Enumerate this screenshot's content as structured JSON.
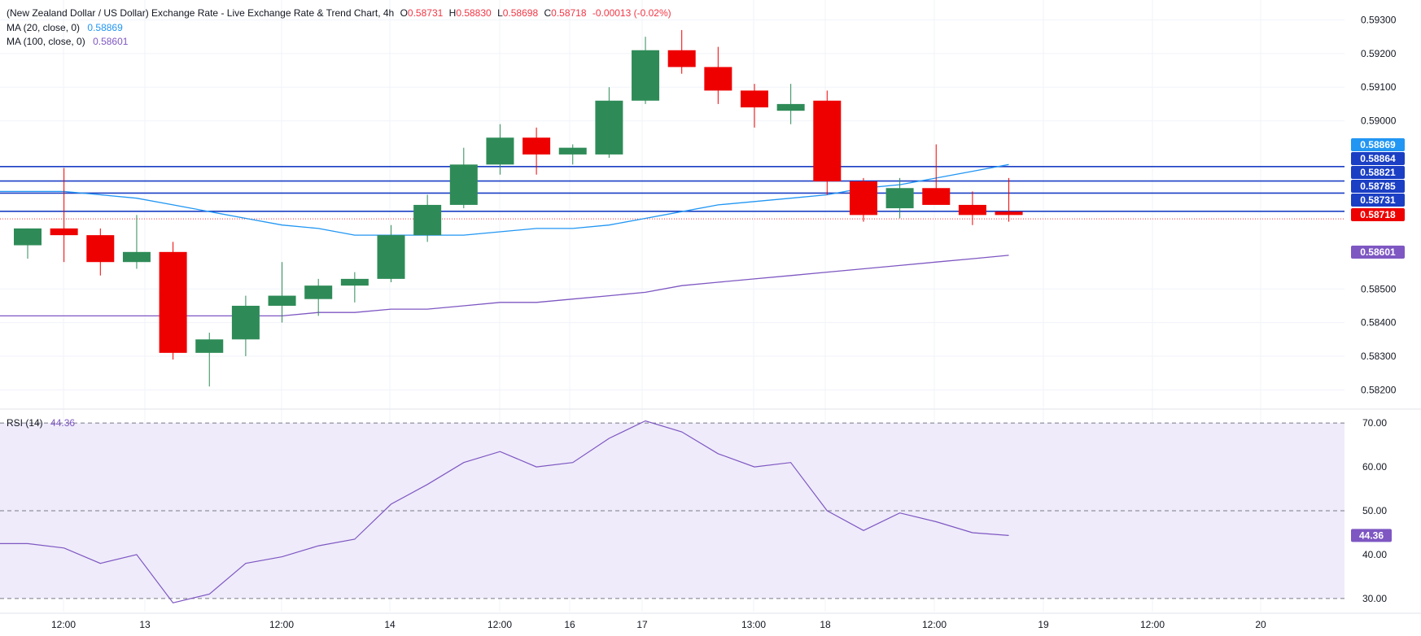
{
  "header": {
    "title": "(New Zealand Dollar / US Dollar) Exchange Rate - Live Exchange Rate & Trend Chart, 4h",
    "o_label": "O",
    "o_value": "0.58731",
    "h_label": "H",
    "h_value": "0.58830",
    "l_label": "L",
    "l_value": "0.58698",
    "c_label": "C",
    "c_value": "0.58718",
    "change": "-0.00013 (-0.02%)",
    "ma20_label": "MA (20, close, 0)",
    "ma20_value": "0.58869",
    "ma100_label": "MA (100, close, 0)",
    "ma100_value": "0.58601",
    "rsi_label": "RSI (14)",
    "rsi_value": "44.36"
  },
  "colors": {
    "up": "#2e8b57",
    "down": "#ee0000",
    "ma20": "#2196f3",
    "ma100": "#7e57c2",
    "sr_line": "#1a3fc4",
    "rsi_line": "#7e57c2",
    "rsi_band": "#efebfa"
  },
  "chart_data": [
    {
      "type": "candlestick",
      "ylim": [
        0.5815,
        0.5934
      ],
      "y_ticks": [
        "0.59300",
        "0.59200",
        "0.59100",
        "0.59000",
        "0.58500",
        "0.58400",
        "0.58300",
        "0.58200"
      ],
      "x_ticks": [
        "12:00",
        "13",
        "12:00",
        "14",
        "12:00",
        "16",
        "17",
        "13:00",
        "18",
        "12:00",
        "19",
        "12:00",
        "20"
      ],
      "price_labels": [
        {
          "text": "0.58869",
          "role": "ma20",
          "value": 0.58869
        },
        {
          "text": "0.58864",
          "role": "level",
          "value": 0.58864
        },
        {
          "text": "0.58821",
          "role": "level",
          "value": 0.58821
        },
        {
          "text": "0.58785",
          "role": "level",
          "value": 0.58785
        },
        {
          "text": "0.58731",
          "role": "level",
          "value": 0.58731
        },
        {
          "text": "0.58718",
          "role": "last",
          "value": 0.58718
        },
        {
          "text": "0.58601",
          "role": "ma100",
          "value": 0.58601
        }
      ],
      "levels": [
        0.58864,
        0.58821,
        0.58785,
        0.58731
      ],
      "last_price": 0.58718,
      "candles": [
        {
          "o": 0.5863,
          "h": 0.5868,
          "l": 0.5859,
          "c": 0.5868
        },
        {
          "o": 0.5868,
          "h": 0.5886,
          "l": 0.5858,
          "c": 0.5866
        },
        {
          "o": 0.5866,
          "h": 0.5868,
          "l": 0.5854,
          "c": 0.5858
        },
        {
          "o": 0.5858,
          "h": 0.5872,
          "l": 0.5856,
          "c": 0.5861
        },
        {
          "o": 0.5861,
          "h": 0.5864,
          "l": 0.5829,
          "c": 0.5831
        },
        {
          "o": 0.5831,
          "h": 0.5837,
          "l": 0.5821,
          "c": 0.5835
        },
        {
          "o": 0.5835,
          "h": 0.5848,
          "l": 0.583,
          "c": 0.5845
        },
        {
          "o": 0.5845,
          "h": 0.5858,
          "l": 0.584,
          "c": 0.5848
        },
        {
          "o": 0.5847,
          "h": 0.5853,
          "l": 0.5842,
          "c": 0.5851
        },
        {
          "o": 0.5851,
          "h": 0.5855,
          "l": 0.5846,
          "c": 0.5853
        },
        {
          "o": 0.5853,
          "h": 0.5869,
          "l": 0.5852,
          "c": 0.5866
        },
        {
          "o": 0.5866,
          "h": 0.5878,
          "l": 0.5864,
          "c": 0.5875
        },
        {
          "o": 0.5875,
          "h": 0.5892,
          "l": 0.5874,
          "c": 0.5887
        },
        {
          "o": 0.5887,
          "h": 0.5899,
          "l": 0.5884,
          "c": 0.5895
        },
        {
          "o": 0.5895,
          "h": 0.5898,
          "l": 0.5884,
          "c": 0.589
        },
        {
          "o": 0.589,
          "h": 0.5893,
          "l": 0.5887,
          "c": 0.5892
        },
        {
          "o": 0.589,
          "h": 0.591,
          "l": 0.5889,
          "c": 0.5906
        },
        {
          "o": 0.5906,
          "h": 0.5925,
          "l": 0.5905,
          "c": 0.5921
        },
        {
          "o": 0.5921,
          "h": 0.5927,
          "l": 0.5914,
          "c": 0.5916
        },
        {
          "o": 0.5916,
          "h": 0.5922,
          "l": 0.5905,
          "c": 0.5909
        },
        {
          "o": 0.5909,
          "h": 0.5911,
          "l": 0.5898,
          "c": 0.5904
        },
        {
          "o": 0.5903,
          "h": 0.5911,
          "l": 0.5899,
          "c": 0.5905
        },
        {
          "o": 0.5906,
          "h": 0.5909,
          "l": 0.5878,
          "c": 0.5882
        },
        {
          "o": 0.5882,
          "h": 0.5883,
          "l": 0.587,
          "c": 0.5872
        },
        {
          "o": 0.5874,
          "h": 0.5883,
          "l": 0.5871,
          "c": 0.588
        },
        {
          "o": 0.588,
          "h": 0.5893,
          "l": 0.5876,
          "c": 0.5875
        },
        {
          "o": 0.5875,
          "h": 0.5879,
          "l": 0.5869,
          "c": 0.5872
        },
        {
          "o": 0.5873,
          "h": 0.5883,
          "l": 0.587,
          "c": 0.5872
        }
      ],
      "ma20": [
        0.5879,
        0.5879,
        0.5878,
        0.5877,
        0.5875,
        0.5873,
        0.5871,
        0.5869,
        0.5868,
        0.5866,
        0.5866,
        0.5866,
        0.5866,
        0.5867,
        0.5868,
        0.5868,
        0.5869,
        0.5871,
        0.5873,
        0.5875,
        0.5876,
        0.5877,
        0.5878,
        0.588,
        0.5881,
        0.5883,
        0.5885,
        0.5887
      ],
      "ma100": [
        0.5842,
        0.5842,
        0.5842,
        0.5842,
        0.5842,
        0.5842,
        0.5842,
        0.5842,
        0.5843,
        0.5843,
        0.5844,
        0.5844,
        0.5845,
        0.5846,
        0.5846,
        0.5847,
        0.5848,
        0.5849,
        0.5851,
        0.5852,
        0.5853,
        0.5854,
        0.5855,
        0.5856,
        0.5857,
        0.5858,
        0.5859,
        0.586
      ]
    },
    {
      "type": "line",
      "name": "RSI (14)",
      "ylim": [
        27,
        73
      ],
      "y_ticks": [
        "70.00",
        "60.00",
        "50.00",
        "40.00",
        "30.00"
      ],
      "bands": [
        30,
        50,
        70
      ],
      "values": [
        42.5,
        41.5,
        38.0,
        40.0,
        29.0,
        31.0,
        38.0,
        39.5,
        42.0,
        43.5,
        51.5,
        56.0,
        61.0,
        63.5,
        60.0,
        61.0,
        66.5,
        70.5,
        68.0,
        63.0,
        60.0,
        61.0,
        50.0,
        45.5,
        49.5,
        47.5,
        45.0,
        44.36
      ]
    }
  ]
}
